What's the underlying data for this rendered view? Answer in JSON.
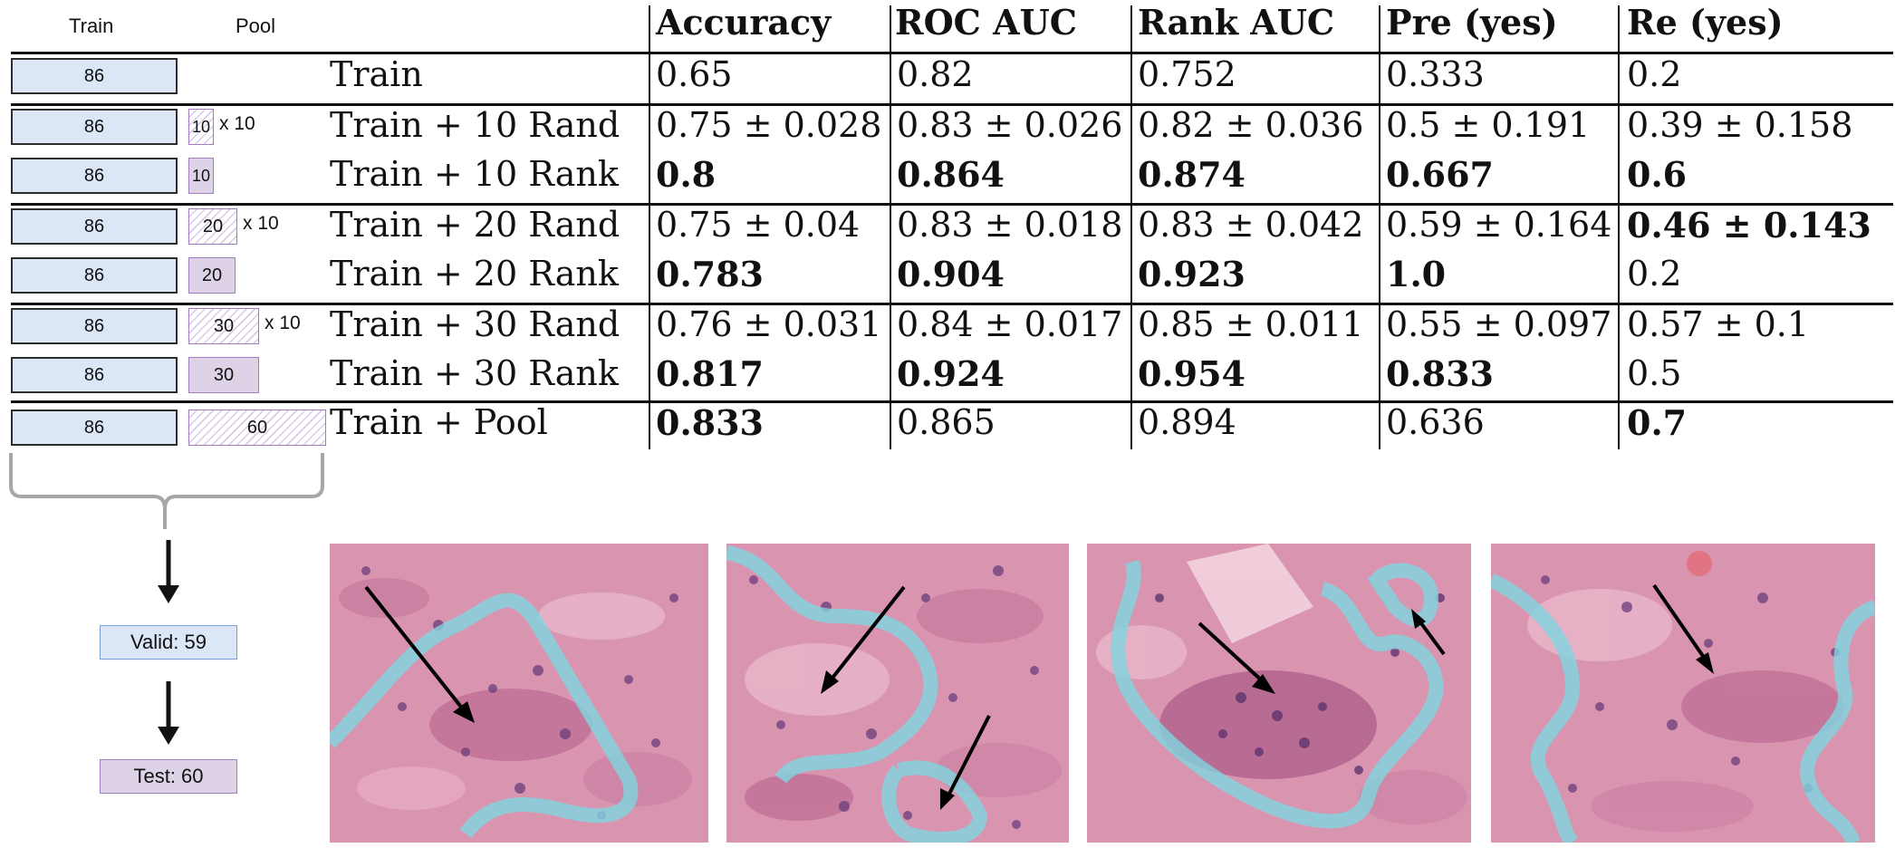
{
  "diagram": {
    "train_header": "Train",
    "pool_header": "Pool",
    "rows": [
      {
        "train": "86",
        "pool": "",
        "multiplier": ""
      },
      {
        "train": "86",
        "pool": "10",
        "multiplier": "x 10"
      },
      {
        "train": "86",
        "pool": "10",
        "multiplier": ""
      },
      {
        "train": "86",
        "pool": "20",
        "multiplier": "x 10"
      },
      {
        "train": "86",
        "pool": "20",
        "multiplier": ""
      },
      {
        "train": "86",
        "pool": "30",
        "multiplier": "x 10"
      },
      {
        "train": "86",
        "pool": "30",
        "multiplier": ""
      },
      {
        "train": "86",
        "pool": "60",
        "multiplier": ""
      }
    ],
    "valid_label": "Valid: 59",
    "test_label": "Test: 60"
  },
  "table": {
    "columns": [
      "Accuracy",
      "ROC AUC",
      "Rank AUC",
      "Pre (yes)",
      "Re (yes)"
    ],
    "rows": [
      {
        "label": "Train",
        "cells": [
          {
            "text": "0.65",
            "bold": false
          },
          {
            "text": "0.82",
            "bold": false
          },
          {
            "text": "0.752",
            "bold": false
          },
          {
            "text": "0.333",
            "bold": false
          },
          {
            "text": "0.2",
            "bold": false
          }
        ]
      },
      {
        "label": "Train + 10 Rand",
        "cells": [
          {
            "text": "0.75 ± 0.028",
            "bold": false
          },
          {
            "text": "0.83 ± 0.026",
            "bold": false
          },
          {
            "text": "0.82 ± 0.036",
            "bold": false
          },
          {
            "text": "0.5 ± 0.191",
            "bold": false
          },
          {
            "text": "0.39 ± 0.158",
            "bold": false
          }
        ]
      },
      {
        "label": "Train + 10 Rank",
        "cells": [
          {
            "text": "0.8",
            "bold": true
          },
          {
            "text": "0.864",
            "bold": true
          },
          {
            "text": "0.874",
            "bold": true
          },
          {
            "text": "0.667",
            "bold": true
          },
          {
            "text": "0.6",
            "bold": true
          }
        ]
      },
      {
        "label": "Train + 20 Rand",
        "cells": [
          {
            "text": "0.75 ± 0.04",
            "bold": false
          },
          {
            "text": "0.83 ± 0.018",
            "bold": false
          },
          {
            "text": "0.83 ± 0.042",
            "bold": false
          },
          {
            "text": "0.59 ± 0.164",
            "bold": false
          },
          {
            "text": "0.46 ± 0.143",
            "bold": true
          }
        ]
      },
      {
        "label": "Train + 20 Rank",
        "cells": [
          {
            "text": "0.783",
            "bold": true
          },
          {
            "text": "0.904",
            "bold": true
          },
          {
            "text": "0.923",
            "bold": true
          },
          {
            "text": "1.0",
            "bold": true
          },
          {
            "text": "0.2",
            "bold": false
          }
        ]
      },
      {
        "label": "Train + 30 Rand",
        "cells": [
          {
            "text": "0.76 ± 0.031",
            "bold": false
          },
          {
            "text": "0.84 ± 0.017",
            "bold": false
          },
          {
            "text": "0.85 ± 0.011",
            "bold": false
          },
          {
            "text": "0.55 ± 0.097",
            "bold": false
          },
          {
            "text": "0.57 ± 0.1",
            "bold": false
          }
        ]
      },
      {
        "label": "Train + 30 Rank",
        "cells": [
          {
            "text": "0.817",
            "bold": true
          },
          {
            "text": "0.924",
            "bold": true
          },
          {
            "text": "0.954",
            "bold": true
          },
          {
            "text": "0.833",
            "bold": true
          },
          {
            "text": "0.5",
            "bold": false
          }
        ]
      },
      {
        "label": "Train + Pool",
        "cells": [
          {
            "text": "0.833",
            "bold": true
          },
          {
            "text": "0.865",
            "bold": false
          },
          {
            "text": "0.894",
            "bold": false
          },
          {
            "text": "0.636",
            "bold": false
          },
          {
            "text": "0.7",
            "bold": true
          }
        ]
      }
    ]
  },
  "patches": [
    {
      "name": "tissue-patch-1"
    },
    {
      "name": "tissue-patch-2"
    },
    {
      "name": "tissue-patch-3"
    },
    {
      "name": "tissue-patch-4"
    }
  ],
  "colors": {
    "train_box": "#dbe6f7",
    "pool_box": "#ddd2e6",
    "tissue": "#d590ac",
    "annotation_outline": "#7fd6e0"
  }
}
